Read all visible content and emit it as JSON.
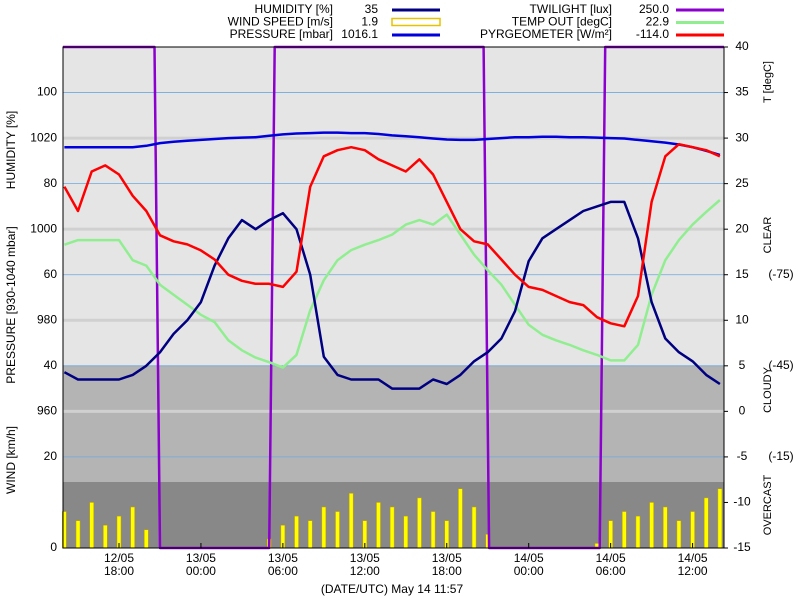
{
  "chart_data": {
    "type": "line",
    "x_label": "(DATE/UTC) May 14 11:57",
    "y_label": "HUMIDITY [%]",
    "pressure_label": "PRESSURE [930-1040 mbar]",
    "wind_label": "WIND [km/h]",
    "y2_label": "T [degC]",
    "sky_labels": [
      "CLEAR",
      "CLOUDY",
      "OVERCAST"
    ],
    "x": [
      14,
      15,
      16,
      17,
      18,
      19,
      20,
      21,
      22,
      23,
      24,
      25,
      26,
      27,
      28,
      29,
      30,
      31,
      32,
      33,
      34,
      35,
      36,
      37,
      38,
      39,
      40,
      41,
      42,
      43,
      44,
      45,
      46,
      47,
      48,
      49,
      50,
      51,
      52,
      53,
      54,
      55,
      56,
      57,
      58,
      59,
      60,
      61,
      62
    ],
    "xlim": [
      13.9,
      62.3
    ],
    "xticks": [
      {
        "value": 18,
        "label": "12/05\n18:00"
      },
      {
        "value": 24,
        "label": "13/05\n00:00"
      },
      {
        "value": 30,
        "label": "13/05\n06:00"
      },
      {
        "value": 36,
        "label": "13/05\n12:00"
      },
      {
        "value": 42,
        "label": "13/05\n18:00"
      },
      {
        "value": 48,
        "label": "14/05\n00:00"
      },
      {
        "value": 54,
        "label": "14/05\n06:00"
      },
      {
        "value": 60,
        "label": "14/05\n12:00"
      }
    ],
    "ylim": [
      0,
      110
    ],
    "yticks": [
      0,
      20,
      40,
      60,
      80,
      100
    ],
    "pressure_lim": [
      930,
      1040
    ],
    "pressure_ticks": [
      960,
      980,
      1000,
      1020
    ],
    "y2lim": [
      -15,
      40
    ],
    "y2ticks": [
      -15,
      -10,
      -5,
      0,
      5,
      10,
      15,
      20,
      25,
      30,
      35,
      40
    ],
    "pyrgeometer_lim": [
      15,
      -150
    ],
    "pyrgeometer_ticks": [
      {
        "value": -75,
        "label": "(-75)"
      },
      {
        "value": -45,
        "label": "(-45)"
      },
      {
        "value": -15,
        "label": "(-15)"
      }
    ],
    "twilight_lim": [
      0,
      250
    ],
    "series": [
      {
        "name": "HUMIDITY [%]",
        "legend_value": "35",
        "type": "line",
        "axis": "y",
        "color": "#000080",
        "values": [
          38.6,
          37,
          37,
          37,
          37,
          38,
          40,
          43,
          47,
          50,
          54,
          62,
          68,
          72,
          70,
          72,
          73.5,
          70,
          60,
          42,
          38,
          37,
          37,
          37,
          35,
          35,
          35,
          37,
          36,
          38,
          41,
          43,
          46,
          52,
          63,
          68,
          70,
          72,
          74,
          75,
          76,
          76,
          68,
          54,
          46,
          43,
          41,
          38,
          36
        ]
      },
      {
        "name": "WIND SPEED [m/s]",
        "legend_value": "1.9",
        "type": "bar",
        "axis": "y",
        "color": "#ffff00",
        "values": [
          8,
          6,
          10,
          5,
          7,
          9,
          4,
          0,
          0,
          0,
          0,
          0,
          0,
          0,
          0,
          2,
          5,
          7,
          6,
          9,
          8,
          12,
          6,
          10,
          9,
          7,
          11,
          8,
          6,
          13,
          9,
          3,
          0,
          0,
          0,
          0,
          0,
          0,
          0,
          1,
          6,
          8,
          7,
          10,
          9,
          6,
          8,
          11,
          13
        ]
      },
      {
        "name": "PRESSURE [mbar]",
        "legend_value": "1016.1",
        "type": "line",
        "axis": "pressure",
        "color": "#0000dd",
        "values": [
          1018.0,
          1018.0,
          1018.0,
          1018.0,
          1018.0,
          1018.0,
          1018.3,
          1018.9,
          1019.2,
          1019.4,
          1019.6,
          1019.8,
          1020.0,
          1020.1,
          1020.2,
          1020.5,
          1020.8,
          1021.0,
          1021.1,
          1021.2,
          1021.2,
          1021.1,
          1021.1,
          1020.9,
          1020.6,
          1020.4,
          1020.2,
          1019.9,
          1019.7,
          1019.6,
          1019.6,
          1019.8,
          1020.0,
          1020.2,
          1020.2,
          1020.3,
          1020.3,
          1020.2,
          1020.2,
          1020.1,
          1020.0,
          1019.9,
          1019.6,
          1019.3,
          1019.0,
          1018.6,
          1018.0,
          1017.2,
          1016.3
        ]
      },
      {
        "name": "TWILIGHT [lux]",
        "legend_value": "250.0",
        "type": "line",
        "axis": "twilight",
        "color": "#8b00cc",
        "x": [
          13.9,
          20.6,
          21.0,
          29.0,
          29.4,
          44.7,
          45.1,
          53.2,
          53.6,
          62.3
        ],
        "values": [
          250,
          250,
          0,
          0,
          250,
          250,
          0,
          0,
          250,
          250
        ]
      },
      {
        "name": "TEMP OUT [degC]",
        "legend_value": "22.9",
        "type": "line",
        "axis": "y2",
        "color": "#90ee90",
        "values": [
          18.3,
          18.8,
          18.8,
          18.8,
          18.8,
          16.6,
          16,
          13.9,
          12.8,
          11.7,
          10.6,
          9.8,
          7.8,
          6.7,
          5.9,
          5.4,
          4.8,
          6.2,
          11.1,
          14.4,
          16.6,
          17.7,
          18.3,
          18.8,
          19.4,
          20.5,
          21,
          20.5,
          21.6,
          19.4,
          17.2,
          15.5,
          13.9,
          11.7,
          9.5,
          8.4,
          7.8,
          7.3,
          6.7,
          6.2,
          5.6,
          5.6,
          7.3,
          12.8,
          16.6,
          18.8,
          20.5,
          21.9,
          23.2
        ]
      },
      {
        "name": "PYRGEOMETER [W/m²]",
        "legend_value": "-114.0",
        "type": "line",
        "axis": "pyrgeometer",
        "color": "#ff0000",
        "values": [
          -104,
          -96,
          -109,
          -111,
          -108,
          -101,
          -96,
          -88,
          -86,
          -85,
          -83,
          -80,
          -75,
          -73,
          -72,
          -72,
          -71,
          -76,
          -104,
          -114,
          -116,
          -117,
          -116,
          -113,
          -111,
          -109,
          -113,
          -108,
          -99,
          -90,
          -86,
          -85,
          -80,
          -75,
          -71,
          -70,
          -68,
          -66,
          -65,
          -61,
          -59,
          -58,
          -68,
          -99,
          -114,
          -118,
          -117,
          -116,
          -114
        ]
      }
    ]
  }
}
